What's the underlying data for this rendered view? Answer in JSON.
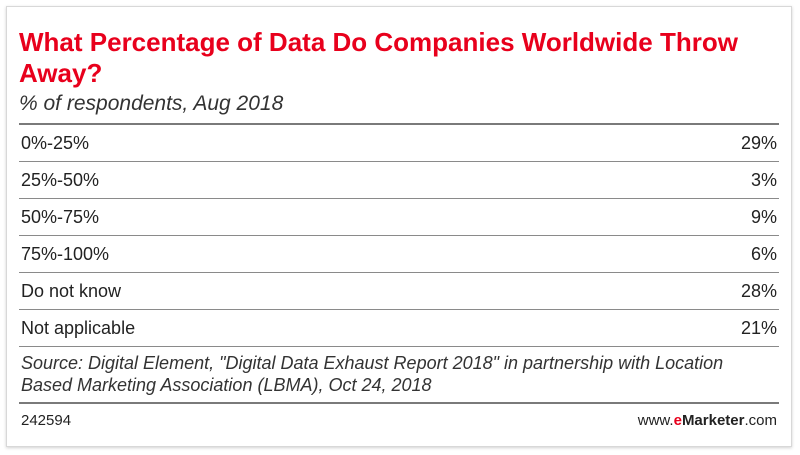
{
  "chart_data": {
    "type": "table",
    "title": "What Percentage of Data Do Companies Worldwide Throw Away?",
    "subtitle": "% of respondents, Aug 2018",
    "categories": [
      "0%-25%",
      "25%-50%",
      "50%-75%",
      "75%-100%",
      "Do not know",
      "Not applicable"
    ],
    "values": [
      29,
      3,
      9,
      6,
      28,
      21
    ],
    "value_labels": [
      "29%",
      "3%",
      "9%",
      "6%",
      "28%",
      "21%"
    ],
    "source": "Source: Digital Element, \"Digital Data Exhaust Report 2018\" in partnership with Location Based Marketing Association (LBMA), Oct 24, 2018"
  },
  "footer": {
    "chart_id": "242594",
    "brand_prefix": "www.",
    "brand_e": "e",
    "brand_name": "Marketer",
    "brand_suffix": ".com"
  },
  "colors": {
    "title": "#e8001c",
    "brand_accent": "#e8001c"
  }
}
